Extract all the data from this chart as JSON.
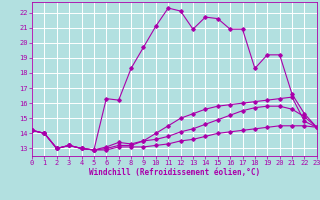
{
  "xlabel": "Windchill (Refroidissement éolien,°C)",
  "bg_color": "#b2e0e0",
  "grid_color": "#ffffff",
  "line_color": "#aa00aa",
  "xmin": 0,
  "xmax": 23,
  "ymin": 12.5,
  "ymax": 22.7,
  "yticks": [
    13,
    14,
    15,
    16,
    17,
    18,
    19,
    20,
    21,
    22
  ],
  "xticks": [
    0,
    1,
    2,
    3,
    4,
    5,
    6,
    7,
    8,
    9,
    10,
    11,
    12,
    13,
    14,
    15,
    16,
    17,
    18,
    19,
    20,
    21,
    22,
    23
  ],
  "series1": [
    [
      0,
      14.2
    ],
    [
      1,
      14.0
    ],
    [
      2,
      13.0
    ],
    [
      3,
      13.2
    ],
    [
      4,
      13.0
    ],
    [
      5,
      12.9
    ],
    [
      6,
      12.9
    ],
    [
      7,
      13.1
    ],
    [
      8,
      13.1
    ],
    [
      9,
      13.1
    ],
    [
      10,
      13.2
    ],
    [
      11,
      13.3
    ],
    [
      12,
      13.5
    ],
    [
      13,
      13.6
    ],
    [
      14,
      13.8
    ],
    [
      15,
      14.0
    ],
    [
      16,
      14.1
    ],
    [
      17,
      14.2
    ],
    [
      18,
      14.3
    ],
    [
      19,
      14.4
    ],
    [
      20,
      14.5
    ],
    [
      21,
      14.5
    ],
    [
      22,
      14.5
    ],
    [
      23,
      14.4
    ]
  ],
  "series2": [
    [
      0,
      14.2
    ],
    [
      1,
      14.0
    ],
    [
      2,
      13.0
    ],
    [
      3,
      13.2
    ],
    [
      4,
      13.0
    ],
    [
      5,
      12.9
    ],
    [
      6,
      13.0
    ],
    [
      7,
      13.2
    ],
    [
      8,
      13.2
    ],
    [
      9,
      13.5
    ],
    [
      10,
      14.0
    ],
    [
      11,
      14.5
    ],
    [
      12,
      15.0
    ],
    [
      13,
      15.3
    ],
    [
      14,
      15.6
    ],
    [
      15,
      15.8
    ],
    [
      16,
      15.9
    ],
    [
      17,
      16.0
    ],
    [
      18,
      16.1
    ],
    [
      19,
      16.2
    ],
    [
      20,
      16.3
    ],
    [
      21,
      16.4
    ],
    [
      22,
      14.8
    ],
    [
      23,
      14.4
    ]
  ],
  "series3": [
    [
      0,
      14.2
    ],
    [
      1,
      14.0
    ],
    [
      2,
      13.0
    ],
    [
      3,
      13.2
    ],
    [
      4,
      13.0
    ],
    [
      5,
      12.9
    ],
    [
      6,
      13.1
    ],
    [
      7,
      13.4
    ],
    [
      8,
      13.3
    ],
    [
      9,
      13.5
    ],
    [
      10,
      13.6
    ],
    [
      11,
      13.8
    ],
    [
      12,
      14.1
    ],
    [
      13,
      14.3
    ],
    [
      14,
      14.6
    ],
    [
      15,
      14.9
    ],
    [
      16,
      15.2
    ],
    [
      17,
      15.5
    ],
    [
      18,
      15.7
    ],
    [
      19,
      15.8
    ],
    [
      20,
      15.8
    ],
    [
      21,
      15.6
    ],
    [
      22,
      15.1
    ],
    [
      23,
      14.4
    ]
  ],
  "series4": [
    [
      0,
      14.2
    ],
    [
      1,
      14.0
    ],
    [
      2,
      13.0
    ],
    [
      3,
      13.2
    ],
    [
      4,
      13.0
    ],
    [
      5,
      12.9
    ],
    [
      6,
      16.3
    ],
    [
      7,
      16.2
    ],
    [
      8,
      18.3
    ],
    [
      9,
      19.7
    ],
    [
      10,
      21.1
    ],
    [
      11,
      22.3
    ],
    [
      12,
      22.1
    ],
    [
      13,
      20.9
    ],
    [
      14,
      21.7
    ],
    [
      15,
      21.6
    ],
    [
      16,
      20.9
    ],
    [
      17,
      20.9
    ],
    [
      18,
      18.3
    ],
    [
      19,
      19.2
    ],
    [
      20,
      19.2
    ],
    [
      21,
      16.6
    ],
    [
      22,
      15.3
    ],
    [
      23,
      14.4
    ]
  ]
}
